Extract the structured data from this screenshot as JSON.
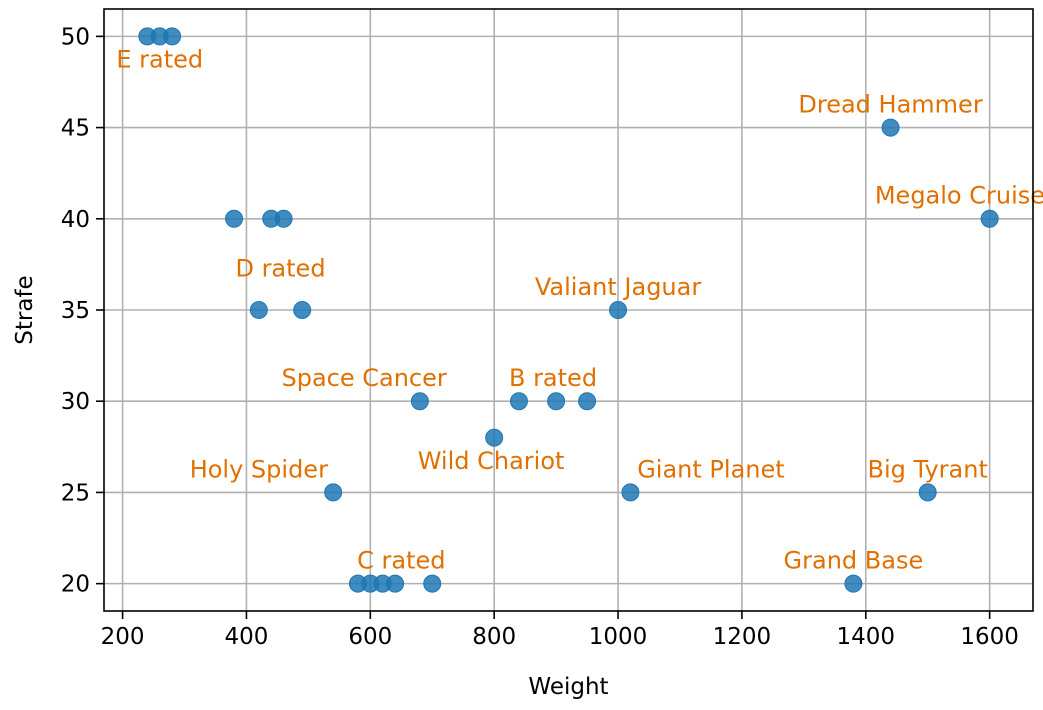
{
  "chart_data": {
    "type": "scatter",
    "title": "",
    "xlabel": "Weight",
    "ylabel": "Strafe",
    "xlim": [
      170,
      1670
    ],
    "ylim": [
      18.5,
      51.5
    ],
    "xticks": [
      200,
      400,
      600,
      800,
      1000,
      1200,
      1400,
      1600
    ],
    "yticks": [
      20,
      25,
      30,
      35,
      40,
      45,
      50
    ],
    "grid": true,
    "legend": "none",
    "colors": {
      "points": "#1f77b4",
      "annotations": "#e07000",
      "grid": "#b0b0b0",
      "axes": "#000000"
    },
    "points": [
      {
        "x": 240,
        "y": 50
      },
      {
        "x": 260,
        "y": 50
      },
      {
        "x": 280,
        "y": 50
      },
      {
        "x": 380,
        "y": 40
      },
      {
        "x": 440,
        "y": 40
      },
      {
        "x": 460,
        "y": 40
      },
      {
        "x": 420,
        "y": 35
      },
      {
        "x": 490,
        "y": 35
      },
      {
        "x": 680,
        "y": 30
      },
      {
        "x": 840,
        "y": 30
      },
      {
        "x": 900,
        "y": 30
      },
      {
        "x": 950,
        "y": 30
      },
      {
        "x": 800,
        "y": 28
      },
      {
        "x": 540,
        "y": 25
      },
      {
        "x": 1020,
        "y": 25
      },
      {
        "x": 1500,
        "y": 25
      },
      {
        "x": 580,
        "y": 20
      },
      {
        "x": 600,
        "y": 20
      },
      {
        "x": 620,
        "y": 20
      },
      {
        "x": 640,
        "y": 20
      },
      {
        "x": 700,
        "y": 20
      },
      {
        "x": 1380,
        "y": 20
      },
      {
        "x": 1440,
        "y": 45
      },
      {
        "x": 1600,
        "y": 40
      },
      {
        "x": 1000,
        "y": 35
      }
    ],
    "annotations": [
      {
        "text": "E rated",
        "x": 260,
        "y": 49.5,
        "position": "below"
      },
      {
        "text": "Dread Hammer",
        "x": 1440,
        "y": 45.5,
        "position": "above"
      },
      {
        "text": "Megalo Cruiser",
        "x": 1560,
        "y": 40.5,
        "position": "above"
      },
      {
        "text": "D rated",
        "x": 455,
        "y": 36.5,
        "position": "above"
      },
      {
        "text": "Valiant Jaguar",
        "x": 1000,
        "y": 35.5,
        "position": "above"
      },
      {
        "text": "Space Cancer",
        "x": 590,
        "y": 30.5,
        "position": "above"
      },
      {
        "text": "B rated",
        "x": 895,
        "y": 30.5,
        "position": "above"
      },
      {
        "text": "Holy Spider",
        "x": 420,
        "y": 25.5,
        "position": "above"
      },
      {
        "text": "Wild Chariot",
        "x": 795,
        "y": 27.5,
        "position": "below"
      },
      {
        "text": "Giant Planet",
        "x": 1150,
        "y": 25.5,
        "position": "above"
      },
      {
        "text": "Big Tyrant",
        "x": 1500,
        "y": 25.5,
        "position": "above"
      },
      {
        "text": "C rated",
        "x": 650,
        "y": 20.5,
        "position": "above"
      },
      {
        "text": "Grand Base",
        "x": 1380,
        "y": 20.5,
        "position": "above"
      }
    ]
  }
}
